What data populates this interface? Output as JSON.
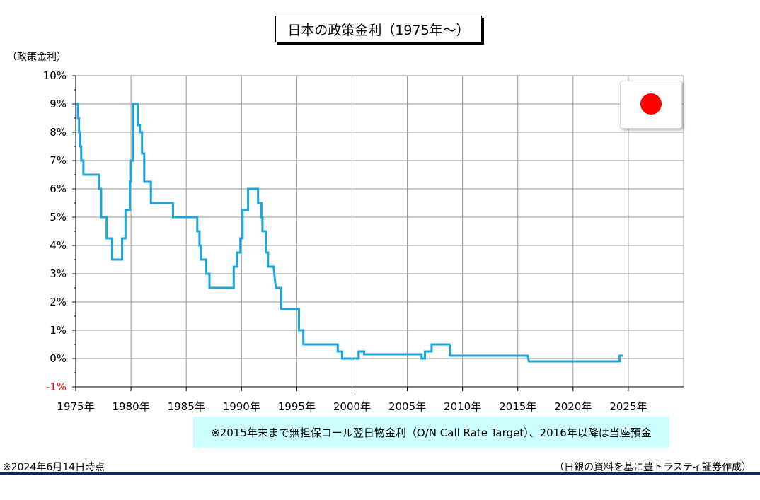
{
  "title": "日本の政策金利（1975年～）",
  "y_unit_label": "（政策金利）",
  "note": "※2015年末まで無担保コール翌日物金利（O/N Call Rate Target）、2016年以降は当座預金",
  "date_note": "※2024年6月14日時点",
  "source_note": "（日銀の資料を基に豊トラスティ証券作成）",
  "flag": {
    "icon": "japan-flag-icon",
    "color": "#ff0000"
  },
  "colors": {
    "line": "#1aa7e0",
    "grid": "#999999",
    "negative_tick": "#ff0000",
    "note_bg": "#ccffff",
    "rule": "#0d2a63"
  },
  "chart_data": {
    "type": "line",
    "title": "日本の政策金利（1975年～）",
    "xlabel": "",
    "ylabel": "（政策金利）",
    "xlim": [
      1975,
      2030
    ],
    "ylim": [
      -1,
      10
    ],
    "grid": true,
    "x_ticks": [
      1975,
      1980,
      1985,
      1990,
      1995,
      2000,
      2005,
      2010,
      2015,
      2020,
      2025
    ],
    "x_tick_labels": [
      "1975年",
      "1980年",
      "1985年",
      "1990年",
      "1995年",
      "2000年",
      "2005年",
      "2010年",
      "2015年",
      "2020年",
      "2025年"
    ],
    "y_ticks": [
      10,
      9,
      8,
      7,
      6,
      5,
      4,
      3,
      2,
      1,
      0,
      -1
    ],
    "y_tick_labels": [
      "10%",
      "9%",
      "8%",
      "7%",
      "6%",
      "5%",
      "4%",
      "3%",
      "2%",
      "1%",
      "0%",
      "-1%"
    ],
    "series": [
      {
        "x": [
          1975.0,
          1975.2,
          1975.3,
          1975.4,
          1975.5,
          1975.7,
          1977.1,
          1977.3,
          1977.8,
          1978.3,
          1979.2,
          1979.5,
          1979.9,
          1980.2,
          1980.8,
          1981.2,
          1981.6,
          1982.0,
          1983.8,
          1986.0,
          1986.2,
          1986.4,
          1986.9,
          1987.1,
          1989.3,
          1989.8,
          1990.2,
          1990.6,
          1991.5,
          1991.9,
          1992.2,
          1992.6,
          1993.1,
          1993.6,
          1995.2,
          1995.6,
          1998.8,
          1999.2,
          2000.6,
          2001.1,
          2006.4,
          2006.8,
          2007.3,
          2008.7,
          2008.9,
          2016.0,
          2024.2
        ],
        "y": [
          9.0,
          8.5,
          8.0,
          7.5,
          7.0,
          6.5,
          6.0,
          5.0,
          4.25,
          3.5,
          4.25,
          5.25,
          6.25,
          9.0,
          8.25,
          7.25,
          6.25,
          5.5,
          5.0,
          4.5,
          4.0,
          3.5,
          3.0,
          2.5,
          3.25,
          3.75,
          4.25,
          5.25,
          5.5,
          5.0,
          4.5,
          3.75,
          3.25,
          2.5,
          1.75,
          1.0,
          0.5,
          0.25,
          0.25,
          0.15,
          0.0,
          0.25,
          0.5,
          0.3,
          0.1,
          -0.1,
          0.1
        ],
        "points": [
          [
            1975.0,
            9.0
          ],
          [
            1975.2,
            9.0
          ],
          [
            1975.2,
            8.5
          ],
          [
            1975.3,
            8.5
          ],
          [
            1975.3,
            8.0
          ],
          [
            1975.4,
            8.0
          ],
          [
            1975.4,
            7.5
          ],
          [
            1975.5,
            7.5
          ],
          [
            1975.5,
            7.0
          ],
          [
            1975.7,
            7.0
          ],
          [
            1975.7,
            6.5
          ],
          [
            1977.1,
            6.5
          ],
          [
            1977.1,
            6.0
          ],
          [
            1977.3,
            6.0
          ],
          [
            1977.3,
            5.0
          ],
          [
            1977.8,
            5.0
          ],
          [
            1977.8,
            4.25
          ],
          [
            1978.3,
            4.25
          ],
          [
            1978.3,
            3.5
          ],
          [
            1979.2,
            3.5
          ],
          [
            1979.2,
            4.25
          ],
          [
            1979.5,
            4.25
          ],
          [
            1979.5,
            5.25
          ],
          [
            1979.9,
            5.25
          ],
          [
            1979.9,
            6.25
          ],
          [
            1980.0,
            6.25
          ],
          [
            1980.0,
            7.0
          ],
          [
            1980.2,
            7.0
          ],
          [
            1980.2,
            9.0
          ],
          [
            1980.6,
            9.0
          ],
          [
            1980.6,
            8.25
          ],
          [
            1980.8,
            8.25
          ],
          [
            1980.8,
            8.0
          ],
          [
            1981.0,
            8.0
          ],
          [
            1981.0,
            7.25
          ],
          [
            1981.2,
            7.25
          ],
          [
            1981.2,
            6.25
          ],
          [
            1981.8,
            6.25
          ],
          [
            1981.8,
            5.5
          ],
          [
            1983.8,
            5.5
          ],
          [
            1983.8,
            5.0
          ],
          [
            1986.0,
            5.0
          ],
          [
            1986.0,
            4.5
          ],
          [
            1986.2,
            4.5
          ],
          [
            1986.2,
            4.0
          ],
          [
            1986.3,
            4.0
          ],
          [
            1986.3,
            3.5
          ],
          [
            1986.8,
            3.5
          ],
          [
            1986.8,
            3.0
          ],
          [
            1987.1,
            3.0
          ],
          [
            1987.1,
            2.5
          ],
          [
            1989.3,
            2.5
          ],
          [
            1989.3,
            3.25
          ],
          [
            1989.6,
            3.25
          ],
          [
            1989.6,
            3.75
          ],
          [
            1989.9,
            3.75
          ],
          [
            1989.9,
            4.25
          ],
          [
            1990.1,
            4.25
          ],
          [
            1990.1,
            5.25
          ],
          [
            1990.6,
            5.25
          ],
          [
            1990.6,
            6.0
          ],
          [
            1991.5,
            6.0
          ],
          [
            1991.5,
            5.5
          ],
          [
            1991.8,
            5.5
          ],
          [
            1991.8,
            5.0
          ],
          [
            1991.9,
            5.0
          ],
          [
            1991.9,
            4.5
          ],
          [
            1992.2,
            4.5
          ],
          [
            1992.2,
            3.75
          ],
          [
            1992.4,
            3.75
          ],
          [
            1992.4,
            3.25
          ],
          [
            1992.9,
            3.25
          ],
          [
            1993.1,
            2.5
          ],
          [
            1993.6,
            2.5
          ],
          [
            1993.6,
            1.75
          ],
          [
            1995.2,
            1.75
          ],
          [
            1995.2,
            1.0
          ],
          [
            1995.6,
            1.0
          ],
          [
            1995.6,
            0.5
          ],
          [
            1998.7,
            0.5
          ],
          [
            1998.7,
            0.25
          ],
          [
            1999.1,
            0.25
          ],
          [
            1999.1,
            0.0
          ],
          [
            1999.2,
            0.0
          ],
          [
            2000.6,
            0.0
          ],
          [
            2000.6,
            0.25
          ],
          [
            2001.1,
            0.25
          ],
          [
            2001.1,
            0.15
          ],
          [
            2006.3,
            0.15
          ],
          [
            2006.3,
            0.0
          ],
          [
            2006.6,
            0.0
          ],
          [
            2006.6,
            0.25
          ],
          [
            2007.2,
            0.25
          ],
          [
            2007.2,
            0.5
          ],
          [
            2008.8,
            0.5
          ],
          [
            2008.9,
            0.3
          ],
          [
            2008.9,
            0.1
          ],
          [
            2015.9,
            0.1
          ],
          [
            2016.0,
            -0.1
          ],
          [
            2024.2,
            -0.1
          ],
          [
            2024.2,
            0.1
          ],
          [
            2024.5,
            0.1
          ]
        ]
      }
    ]
  }
}
